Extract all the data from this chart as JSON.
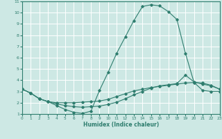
{
  "xlabel": "Humidex (Indice chaleur)",
  "xlim": [
    0,
    23
  ],
  "ylim": [
    1,
    11
  ],
  "yticks": [
    1,
    2,
    3,
    4,
    5,
    6,
    7,
    8,
    9,
    10,
    11
  ],
  "xticks": [
    0,
    1,
    2,
    3,
    4,
    5,
    6,
    7,
    8,
    9,
    10,
    11,
    12,
    13,
    14,
    15,
    16,
    17,
    18,
    19,
    20,
    21,
    22,
    23
  ],
  "bg_color": "#cde8e4",
  "grid_color": "#ffffff",
  "line_color": "#2e7d6e",
  "curve1_x": [
    0,
    1,
    2,
    3,
    4,
    5,
    6,
    7,
    8,
    9,
    10,
    11,
    12,
    13,
    14,
    15,
    16,
    17,
    18,
    19,
    20,
    21,
    22,
    23
  ],
  "curve1_y": [
    3.2,
    2.85,
    2.35,
    2.1,
    1.75,
    1.4,
    1.15,
    1.05,
    1.25,
    3.1,
    4.7,
    6.4,
    7.85,
    9.3,
    10.55,
    10.7,
    10.6,
    10.1,
    9.4,
    6.4,
    3.8,
    3.1,
    3.0,
    3.0
  ],
  "curve2_x": [
    0,
    1,
    2,
    3,
    4,
    5,
    6,
    7,
    8,
    9,
    10,
    11,
    12,
    13,
    14,
    15,
    16,
    17,
    18,
    19,
    20,
    21,
    22,
    23
  ],
  "curve2_y": [
    3.2,
    2.85,
    2.35,
    2.1,
    2.0,
    2.0,
    2.0,
    2.05,
    2.1,
    2.15,
    2.3,
    2.55,
    2.8,
    3.05,
    3.2,
    3.35,
    3.45,
    3.55,
    3.65,
    3.75,
    3.8,
    3.75,
    3.55,
    3.2
  ],
  "curve3_x": [
    0,
    1,
    2,
    3,
    4,
    5,
    6,
    7,
    8,
    9,
    10,
    11,
    12,
    13,
    14,
    15,
    16,
    17,
    18,
    19,
    20,
    21,
    22,
    23
  ],
  "curve3_y": [
    3.2,
    2.85,
    2.35,
    2.1,
    1.9,
    1.75,
    1.65,
    1.6,
    1.65,
    1.7,
    1.85,
    2.05,
    2.35,
    2.7,
    3.0,
    3.3,
    3.5,
    3.6,
    3.7,
    4.45,
    3.85,
    3.65,
    3.5,
    3.2
  ]
}
